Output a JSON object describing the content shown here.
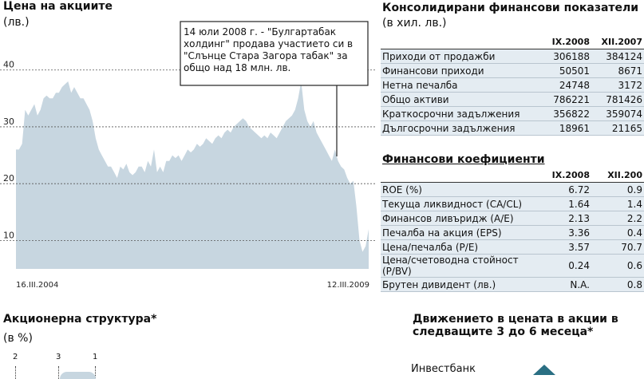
{
  "price_section": {
    "title": "Цена на акциите",
    "unit": "(лв.)",
    "callout": "14 юли 2008 г. - \"Булгартабак холдинг\" продава участието си в \"Слънце Стара Загора табак\" за общо над 18 млн. лв."
  },
  "chart_data": {
    "type": "area",
    "title": "Цена на акциите",
    "ylabel": "(лв.)",
    "ylim": [
      5,
      46
    ],
    "y_ticks": [
      10,
      20,
      30,
      40
    ],
    "x_labels": [
      "16.III.2004",
      "12.III.2009"
    ],
    "grid": "horizontal dotted",
    "series": [
      {
        "values": [
          26,
          26,
          27,
          33,
          32,
          33,
          34,
          32,
          33,
          35,
          35.5,
          35,
          35,
          36,
          36,
          37,
          37.5,
          38,
          36,
          37,
          36,
          35,
          35,
          34,
          33,
          31,
          28,
          26,
          25,
          24,
          23,
          23,
          22,
          21,
          23,
          22.5,
          23.5,
          22,
          21.5,
          22,
          23,
          23,
          22,
          24,
          23,
          26,
          22,
          23,
          22,
          24,
          24,
          25,
          24.5,
          25,
          24,
          25,
          26,
          25.5,
          26,
          27,
          26.5,
          27,
          28,
          27.5,
          27,
          28,
          28.5,
          28,
          29,
          29.5,
          29,
          30,
          30.5,
          31,
          31.5,
          31,
          30,
          29.5,
          29,
          28.5,
          28,
          28.5,
          28,
          29,
          28.5,
          28,
          29,
          30,
          31,
          31.5,
          32,
          33,
          35,
          38,
          33,
          31,
          30,
          31,
          29,
          28,
          27,
          26,
          25,
          24,
          26,
          24,
          23,
          22.5,
          21,
          20,
          20.5,
          16,
          10,
          8,
          9,
          12
        ]
      }
    ]
  },
  "consolidated": {
    "title": "Консолидирани финансови показатели",
    "unit": "(в хил. лв.)",
    "columns": [
      "IX.2008",
      "XII.2007"
    ],
    "rows": [
      {
        "label": "Приходи от продажби",
        "v1": "306188",
        "v2": "384124"
      },
      {
        "label": "Финансови приходи",
        "v1": "50501",
        "v2": "8671"
      },
      {
        "label": "Нетна печалба",
        "v1": "24748",
        "v2": "3172"
      },
      {
        "label": "Общо активи",
        "v1": "786221",
        "v2": "781426"
      },
      {
        "label": "Краткосрочни задължения",
        "v1": "356822",
        "v2": "359074"
      },
      {
        "label": "Дългосрочни задължения",
        "v1": "18961",
        "v2": "21165"
      }
    ]
  },
  "ratios": {
    "title": "Финансови коефициенти",
    "columns": [
      "IX.2008",
      "XII.200"
    ],
    "rows": [
      {
        "label": "ROE (%)",
        "v1": "6.72",
        "v2": "0.9"
      },
      {
        "label": "Текуща ликвидност (CA/CL)",
        "v1": "1.64",
        "v2": "1.4"
      },
      {
        "label": "Финансов ливъридж (A/E)",
        "v1": "2.13",
        "v2": "2.2"
      },
      {
        "label": "Печалба на акция (EPS)",
        "v1": "3.36",
        "v2": "0.4"
      },
      {
        "label": "Цена/печалба (P/E)",
        "v1": "3.57",
        "v2": "70.7"
      },
      {
        "label": "Цена/счетоводна стойност (P/BV)",
        "v1": "0.24",
        "v2": "0.6"
      },
      {
        "label": "Брутен дивидент (лв.)",
        "v1": "N.A.",
        "v2": "0.8"
      }
    ]
  },
  "shareholders": {
    "title": "Акционерна структура*",
    "unit": "(в %)",
    "labels": [
      "2",
      "3",
      "1"
    ]
  },
  "movement": {
    "title_line1": "Движението в цената в акции в",
    "title_line2": "следващите 3 до 6 месеца*",
    "broker": "Инвестбанк",
    "direction_icon": "up-triangle-icon"
  },
  "colors": {
    "area_fill": "#c7d6e0",
    "accent": "#2a6f83",
    "row_band": "#e4ecf2"
  }
}
